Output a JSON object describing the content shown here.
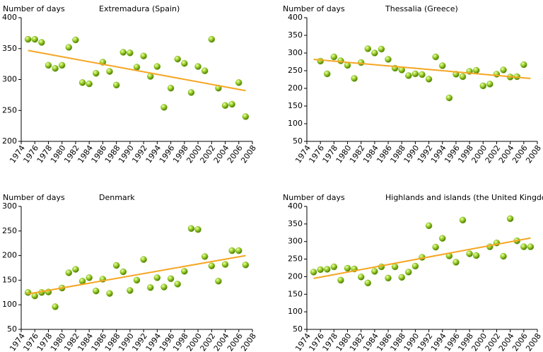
{
  "chart_data": [
    {
      "type": "scatter",
      "title": "Extremadura (Spain)",
      "y_label": "Number of days",
      "xlim": [
        1974,
        2008
      ],
      "xticks": [
        1974,
        1976,
        1978,
        1980,
        1982,
        1984,
        1986,
        1988,
        1990,
        1992,
        1994,
        1996,
        1998,
        2000,
        2002,
        2004,
        2006,
        2008
      ],
      "ylim": [
        200,
        400
      ],
      "yticks": [
        200,
        250,
        300,
        350,
        400
      ],
      "series": [
        {
          "type": "scatter",
          "color": "#7cb518",
          "x": [
            1975,
            1976,
            1977,
            1978,
            1979,
            1980,
            1981,
            1982,
            1983,
            1984,
            1985,
            1986,
            1987,
            1988,
            1989,
            1990,
            1991,
            1992,
            1993,
            1994,
            1995,
            1996,
            1997,
            1998,
            1999,
            2000,
            2001,
            2002,
            2003,
            2004,
            2005,
            2006,
            2007
          ],
          "values": [
            365,
            365,
            360,
            323,
            318,
            323,
            352,
            364,
            295,
            293,
            310,
            328,
            313,
            291,
            344,
            343,
            320,
            338,
            305,
            321,
            255,
            286,
            333,
            326,
            279,
            321,
            314,
            365,
            286,
            258,
            260,
            295,
            240
          ]
        },
        {
          "type": "line",
          "color": "#f5a623",
          "x": [
            1975,
            2007
          ],
          "values": [
            347,
            282
          ]
        }
      ]
    },
    {
      "type": "scatter",
      "title": "Thessalia (Greece)",
      "y_label": "Number of days",
      "xlim": [
        1974,
        2008
      ],
      "xticks": [
        1974,
        1976,
        1978,
        1980,
        1982,
        1984,
        1986,
        1988,
        1990,
        1992,
        1994,
        1996,
        1998,
        2000,
        2002,
        2004,
        2006,
        2008
      ],
      "ylim": [
        50,
        400
      ],
      "yticks": [
        50,
        100,
        150,
        200,
        250,
        300,
        350,
        400
      ],
      "series": [
        {
          "type": "scatter",
          "color": "#7cb518",
          "x": [
            1976,
            1977,
            1978,
            1979,
            1980,
            1981,
            1982,
            1983,
            1984,
            1985,
            1986,
            1987,
            1988,
            1989,
            1990,
            1991,
            1992,
            1993,
            1994,
            1995,
            1996,
            1997,
            1998,
            1999,
            2000,
            2001,
            2002,
            2003,
            2004,
            2005,
            2006
          ],
          "values": [
            277,
            241,
            289,
            278,
            265,
            228,
            273,
            312,
            300,
            311,
            282,
            257,
            252,
            236,
            241,
            239,
            226,
            289,
            264,
            173,
            240,
            233,
            248,
            251,
            207,
            212,
            240,
            252,
            232,
            233,
            267
          ]
        },
        {
          "type": "line",
          "color": "#f5a623",
          "x": [
            1975,
            2007
          ],
          "values": [
            282,
            228
          ]
        }
      ]
    },
    {
      "type": "scatter",
      "title": "Denmark",
      "y_label": "Number of days",
      "xlim": [
        1974,
        2008
      ],
      "xticks": [
        1974,
        1976,
        1978,
        1980,
        1982,
        1984,
        1986,
        1988,
        1990,
        1992,
        1994,
        1996,
        1998,
        2000,
        2002,
        2004,
        2006,
        2008
      ],
      "ylim": [
        50,
        300
      ],
      "yticks": [
        50,
        100,
        150,
        200,
        250,
        300
      ],
      "series": [
        {
          "type": "scatter",
          "color": "#7cb518",
          "x": [
            1975,
            1976,
            1977,
            1978,
            1979,
            1980,
            1981,
            1982,
            1983,
            1984,
            1985,
            1986,
            1987,
            1988,
            1989,
            1990,
            1991,
            1992,
            1993,
            1994,
            1995,
            1996,
            1997,
            1998,
            1999,
            2000,
            2001,
            2002,
            2003,
            2004,
            2005,
            2006,
            2007
          ],
          "values": [
            125,
            118,
            125,
            126,
            96,
            134,
            165,
            172,
            148,
            155,
            128,
            152,
            123,
            180,
            167,
            129,
            150,
            192,
            135,
            155,
            136,
            153,
            142,
            168,
            255,
            253,
            198,
            179,
            148,
            182,
            210,
            210,
            181
          ]
        },
        {
          "type": "line",
          "color": "#f5a623",
          "x": [
            1975,
            2007
          ],
          "values": [
            122,
            200
          ]
        }
      ]
    },
    {
      "type": "scatter",
      "title": "Highlands and islands (the United Kingdom)",
      "y_label": "Number of days",
      "xlim": [
        1974,
        2008
      ],
      "xticks": [
        1974,
        1976,
        1978,
        1980,
        1982,
        1984,
        1986,
        1988,
        1990,
        1992,
        1994,
        1996,
        1998,
        2000,
        2002,
        2004,
        2006,
        2008
      ],
      "ylim": [
        50,
        400
      ],
      "yticks": [
        50,
        100,
        150,
        200,
        250,
        300,
        350,
        400
      ],
      "series": [
        {
          "type": "scatter",
          "color": "#7cb518",
          "x": [
            1975,
            1976,
            1977,
            1978,
            1979,
            1980,
            1981,
            1982,
            1983,
            1984,
            1985,
            1986,
            1987,
            1988,
            1989,
            1990,
            1991,
            1992,
            1993,
            1994,
            1995,
            1996,
            1997,
            1998,
            1999,
            2001,
            2002,
            2003,
            2004,
            2005,
            2006,
            2007
          ],
          "values": [
            213,
            220,
            221,
            228,
            190,
            224,
            222,
            199,
            182,
            215,
            228,
            196,
            228,
            198,
            213,
            230,
            255,
            345,
            284,
            309,
            259,
            241,
            361,
            265,
            260,
            285,
            296,
            258,
            365,
            302,
            285,
            285
          ]
        },
        {
          "type": "line",
          "color": "#f5a623",
          "x": [
            1975,
            2007
          ],
          "values": [
            195,
            310
          ]
        }
      ]
    }
  ]
}
